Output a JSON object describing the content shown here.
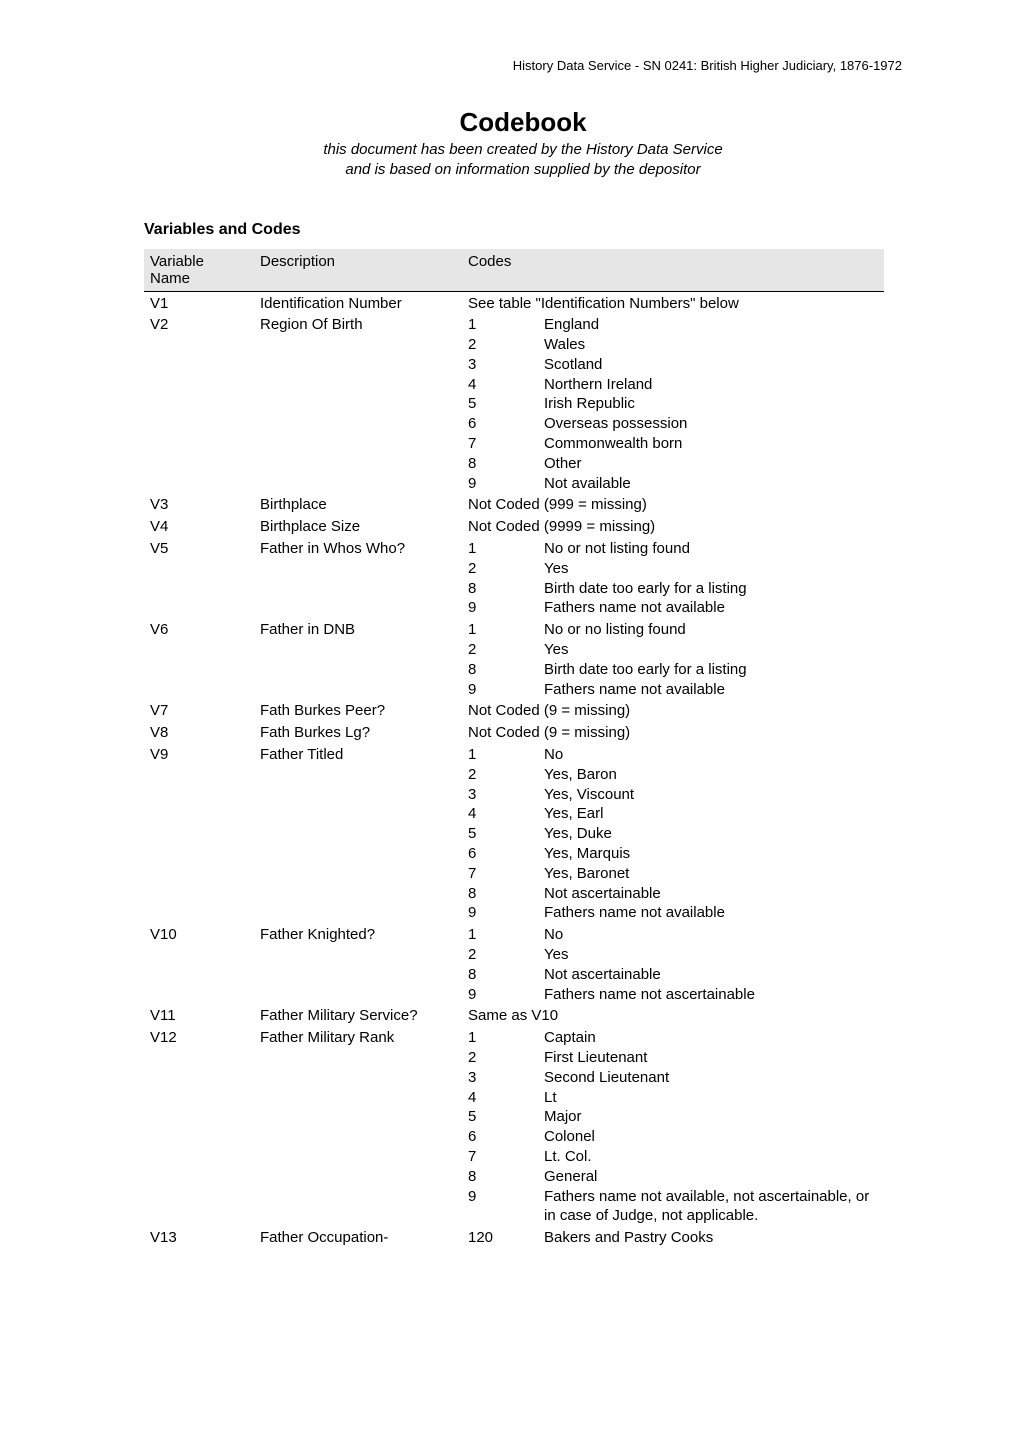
{
  "running_header": "History Data Service - SN 0241: British Higher Judiciary, 1876-1972",
  "title": "Codebook",
  "subtitle_line1": "this document has been created by the History Data Service",
  "subtitle_line2": "and is based on information supplied by the depositor",
  "section_heading": "Variables and Codes",
  "table": {
    "header": {
      "col1a": "Variable",
      "col1b": "Name",
      "col2": "Description",
      "col3": "Codes"
    },
    "rows": [
      {
        "var": "V1",
        "desc": "Identification Number",
        "codes": [
          {
            "key": "",
            "val": "See table \"Identification Numbers\" below",
            "span": true
          }
        ]
      },
      {
        "var": "V2",
        "desc": "Region Of Birth",
        "codes": [
          {
            "key": "1",
            "val": "England"
          },
          {
            "key": "2",
            "val": "Wales"
          },
          {
            "key": "3",
            "val": "Scotland"
          },
          {
            "key": "4",
            "val": "Northern Ireland"
          },
          {
            "key": "5",
            "val": "Irish Republic"
          },
          {
            "key": "6",
            "val": "Overseas possession"
          },
          {
            "key": "7",
            "val": "Commonwealth born"
          },
          {
            "key": "8",
            "val": "Other"
          },
          {
            "key": "9",
            "val": "Not available"
          }
        ]
      },
      {
        "var": "V3",
        "desc": "Birthplace",
        "codes": [
          {
            "key": "",
            "val": "Not Coded (999 = missing)",
            "span": true
          }
        ]
      },
      {
        "var": "V4",
        "desc": "Birthplace Size",
        "codes": [
          {
            "key": "",
            "val": "Not Coded (9999 = missing)",
            "span": true
          }
        ]
      },
      {
        "var": "V5",
        "desc": "Father in Whos Who?",
        "codes": [
          {
            "key": "1",
            "val": "No or not listing found"
          },
          {
            "key": "2",
            "val": "Yes"
          },
          {
            "key": "8",
            "val": "Birth date too early for a listing"
          },
          {
            "key": "9",
            "val": "Fathers name not available"
          }
        ]
      },
      {
        "var": "V6",
        "desc": "Father in DNB",
        "codes": [
          {
            "key": "1",
            "val": "No or no listing found"
          },
          {
            "key": "2",
            "val": "Yes"
          },
          {
            "key": "8",
            "val": "Birth date too early for a listing"
          },
          {
            "key": "9",
            "val": "Fathers name not available"
          }
        ]
      },
      {
        "var": "V7",
        "desc": "Fath Burkes Peer?",
        "codes": [
          {
            "key": "",
            "val": "Not Coded (9 = missing)",
            "span": true
          }
        ]
      },
      {
        "var": "V8",
        "desc": "Fath Burkes Lg?",
        "codes": [
          {
            "key": "",
            "val": "Not Coded (9 = missing)",
            "span": true
          }
        ]
      },
      {
        "var": "V9",
        "desc": "Father Titled",
        "codes": [
          {
            "key": "1",
            "val": "No"
          },
          {
            "key": "2",
            "val": "Yes, Baron"
          },
          {
            "key": "3",
            "val": "Yes, Viscount"
          },
          {
            "key": "4",
            "val": "Yes, Earl"
          },
          {
            "key": "5",
            "val": "Yes, Duke"
          },
          {
            "key": "6",
            "val": "Yes, Marquis"
          },
          {
            "key": "7",
            "val": "Yes, Baronet"
          },
          {
            "key": "8",
            "val": "Not ascertainable"
          },
          {
            "key": "9",
            "val": "Fathers name not available"
          }
        ]
      },
      {
        "var": "V10",
        "desc": "Father Knighted?",
        "codes": [
          {
            "key": "1",
            "val": "No"
          },
          {
            "key": "2",
            "val": "Yes"
          },
          {
            "key": "8",
            "val": "Not ascertainable"
          },
          {
            "key": "9",
            "val": "Fathers name not ascertainable"
          }
        ]
      },
      {
        "var": "V11",
        "desc": "Father Military Service?",
        "codes": [
          {
            "key": "",
            "val": "Same as V10",
            "span": true
          }
        ]
      },
      {
        "var": "V12",
        "desc": "Father Military Rank",
        "codes": [
          {
            "key": "1",
            "val": "Captain"
          },
          {
            "key": "2",
            "val": "First Lieutenant"
          },
          {
            "key": "3",
            "val": "Second Lieutenant"
          },
          {
            "key": "4",
            "val": "Lt"
          },
          {
            "key": "5",
            "val": "Major"
          },
          {
            "key": "6",
            "val": "Colonel"
          },
          {
            "key": "7",
            "val": "Lt. Col."
          },
          {
            "key": "8",
            "val": "General"
          },
          {
            "key": "9",
            "val": "Fathers name not available, not ascertainable, or in case of Judge, not applicable."
          }
        ]
      },
      {
        "var": "V13",
        "desc": "Father Occupation-",
        "codes": [
          {
            "key": "120",
            "val": "Bakers and Pastry Cooks"
          }
        ]
      }
    ]
  }
}
